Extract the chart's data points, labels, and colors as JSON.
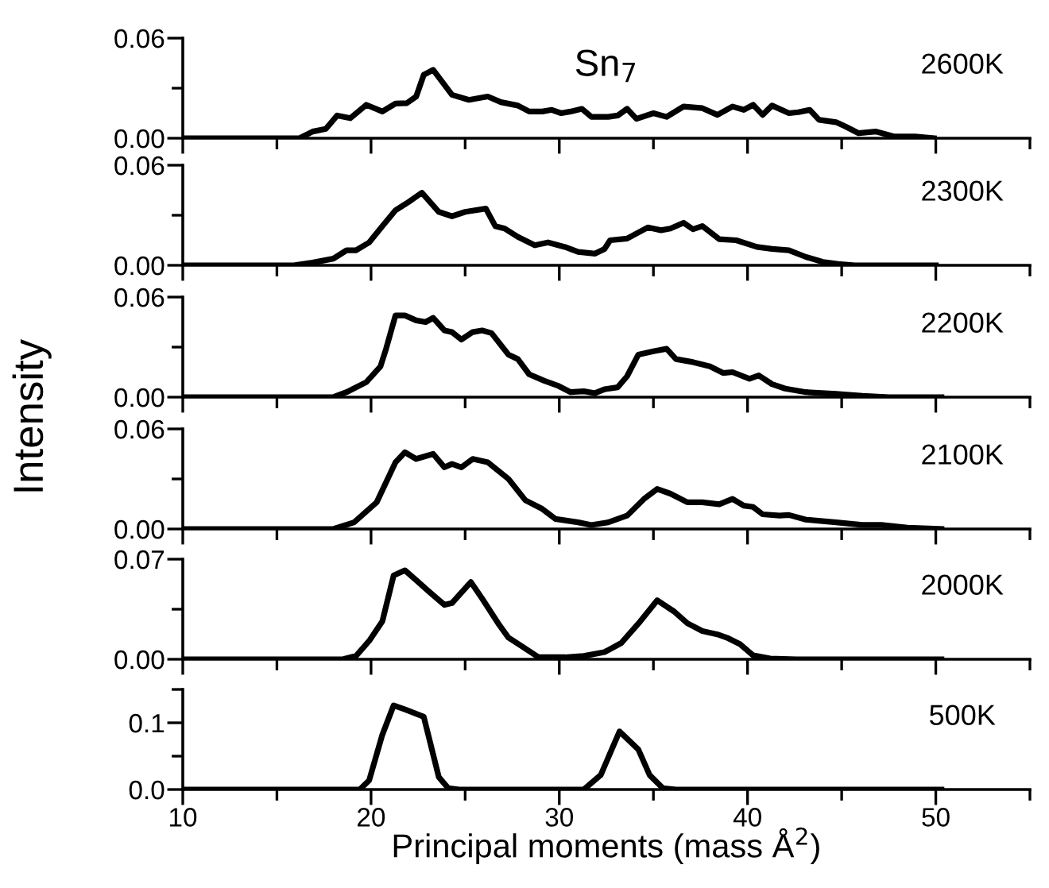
{
  "chart_data": [
    {
      "type": "line",
      "title": "Sn$_{7}$",
      "annotations": [
        "2600K"
      ],
      "color": "#000000",
      "xlim": [
        10,
        55
      ],
      "xticks": [
        10,
        {
          "value": 15,
          "label": null
        },
        20,
        {
          "value": 25,
          "label": null
        },
        30,
        {
          "value": 35,
          "label": null
        },
        40,
        {
          "value": 45,
          "label": null
        },
        50,
        {
          "value": 55,
          "label": null
        }
      ],
      "ylim": [
        0,
        0.06
      ],
      "yticks": [
        {
          "value": 0,
          "label": "0.00"
        },
        {
          "value": 0.03,
          "label": null
        },
        {
          "value": 0.06,
          "label": "0.06"
        }
      ],
      "tick_labels": "y",
      "x": [
        10,
        16.2,
        16.9,
        17.6,
        18.2,
        18.9,
        19.75,
        20.6,
        21.3,
        21.9,
        22.4,
        22.8,
        23.3,
        24.3,
        25.2,
        26.2,
        26.9,
        27.8,
        28.4,
        29.1,
        29.6,
        30.1,
        30.6,
        31.2,
        31.7,
        32.6,
        33.1,
        33.6,
        34.1,
        35.0,
        35.7,
        36.6,
        37.6,
        38.4,
        39.2,
        39.8,
        40.3,
        40.8,
        41.3,
        42.2,
        42.7,
        43.3,
        43.8,
        44.7,
        45.2,
        45.9,
        46.8,
        47.8,
        48.9,
        49.9
      ],
      "values": [
        0,
        0,
        0.004,
        0.0056,
        0.0136,
        0.012,
        0.02,
        0.016,
        0.0208,
        0.021,
        0.025,
        0.038,
        0.041,
        0.026,
        0.023,
        0.025,
        0.0216,
        0.0196,
        0.016,
        0.016,
        0.017,
        0.015,
        0.016,
        0.0176,
        0.0128,
        0.0128,
        0.0136,
        0.0176,
        0.0116,
        0.015,
        0.0128,
        0.019,
        0.018,
        0.014,
        0.019,
        0.017,
        0.02,
        0.014,
        0.0196,
        0.015,
        0.0156,
        0.017,
        0.011,
        0.0096,
        0.007,
        0.003,
        0.004,
        0.001,
        0.001,
        0
      ]
    },
    {
      "type": "line",
      "annotations": [
        "2300K"
      ],
      "color": "#000000",
      "xlim": [
        10,
        55
      ],
      "xticks": [
        10,
        {
          "value": 15,
          "label": null
        },
        20,
        {
          "value": 25,
          "label": null
        },
        30,
        {
          "value": 35,
          "label": null
        },
        40,
        {
          "value": 45,
          "label": null
        },
        50,
        {
          "value": 55,
          "label": null
        }
      ],
      "ylim": [
        0,
        0.06
      ],
      "yticks": [
        {
          "value": 0,
          "label": "0.00"
        },
        {
          "value": 0.03,
          "label": null
        },
        {
          "value": 0.06,
          "label": "0.06"
        }
      ],
      "tick_labels": "y",
      "x": [
        10,
        14.5,
        15.9,
        16.9,
        18.0,
        18.7,
        19.2,
        19.9,
        20.6,
        21.3,
        22.0,
        22.7,
        23.6,
        24.3,
        25.0,
        26.1,
        26.6,
        27.1,
        27.8,
        28.7,
        29.4,
        30.3,
        31.0,
        31.9,
        32.4,
        32.7,
        33.6,
        34.7,
        35.4,
        35.9,
        36.6,
        37.1,
        37.6,
        38.5,
        39.4,
        40.5,
        41.3,
        42.2,
        43.1,
        44.0,
        44.8,
        45.7,
        50
      ],
      "values": [
        0,
        0,
        0,
        0.0016,
        0.004,
        0.009,
        0.009,
        0.0137,
        0.0235,
        0.033,
        0.038,
        0.0435,
        0.032,
        0.0294,
        0.032,
        0.034,
        0.0235,
        0.022,
        0.017,
        0.012,
        0.0137,
        0.011,
        0.008,
        0.007,
        0.0098,
        0.015,
        0.016,
        0.0227,
        0.021,
        0.022,
        0.0255,
        0.0216,
        0.0235,
        0.0157,
        0.015,
        0.011,
        0.0098,
        0.009,
        0.005,
        0.002,
        0.0008,
        0,
        0
      ]
    },
    {
      "type": "line",
      "ylabel": "Intensity",
      "annotations": [
        "2200K"
      ],
      "color": "#000000",
      "xlim": [
        10,
        55
      ],
      "xticks": [
        10,
        {
          "value": 15,
          "label": null
        },
        20,
        {
          "value": 25,
          "label": null
        },
        30,
        {
          "value": 35,
          "label": null
        },
        40,
        {
          "value": 45,
          "label": null
        },
        50,
        {
          "value": 55,
          "label": null
        }
      ],
      "ylim": [
        0,
        0.06
      ],
      "yticks": [
        {
          "value": 0,
          "label": "0.00"
        },
        {
          "value": 0.03,
          "label": null
        },
        {
          "value": 0.06,
          "label": "0.06"
        }
      ],
      "tick_labels": "y",
      "x": [
        10,
        18.0,
        18.7,
        19.75,
        20.5,
        20.8,
        21.3,
        21.8,
        22.4,
        22.9,
        23.3,
        23.9,
        24.3,
        24.8,
        25.4,
        25.9,
        26.4,
        27.3,
        27.8,
        28.4,
        29.2,
        29.9,
        30.6,
        31.3,
        31.9,
        32.4,
        33.1,
        33.6,
        34.2,
        35.0,
        35.7,
        36.2,
        37.1,
        38.0,
        38.7,
        39.2,
        40.1,
        40.6,
        41.3,
        42.0,
        43.1,
        44.7,
        46.1,
        47.5,
        50.3
      ],
      "values": [
        0,
        0,
        0.003,
        0.009,
        0.0184,
        0.029,
        0.049,
        0.049,
        0.046,
        0.045,
        0.0475,
        0.04,
        0.039,
        0.0345,
        0.039,
        0.04,
        0.0384,
        0.0255,
        0.0228,
        0.0137,
        0.0098,
        0.007,
        0.003,
        0.0035,
        0.0024,
        0.0047,
        0.0059,
        0.0125,
        0.0255,
        0.0275,
        0.029,
        0.0228,
        0.021,
        0.0184,
        0.0145,
        0.015,
        0.011,
        0.013,
        0.0078,
        0.0051,
        0.003,
        0.002,
        0.0008,
        0,
        0
      ]
    },
    {
      "type": "line",
      "annotations": [
        "2100K"
      ],
      "color": "#000000",
      "xlim": [
        10,
        55
      ],
      "xticks": [
        10,
        {
          "value": 15,
          "label": null
        },
        20,
        {
          "value": 25,
          "label": null
        },
        30,
        {
          "value": 35,
          "label": null
        },
        40,
        {
          "value": 45,
          "label": null
        },
        50,
        {
          "value": 55,
          "label": null
        }
      ],
      "ylim": [
        0,
        0.06
      ],
      "yticks": [
        {
          "value": 0,
          "label": "0.00"
        },
        {
          "value": 0.03,
          "label": null
        },
        {
          "value": 0.06,
          "label": "0.06"
        }
      ],
      "tick_labels": "y",
      "x": [
        10,
        18.0,
        19.1,
        20.3,
        21.3,
        21.8,
        22.4,
        23.3,
        23.9,
        24.3,
        24.8,
        25.4,
        26.2,
        27.3,
        28.2,
        29.1,
        29.8,
        31.0,
        31.7,
        32.6,
        33.6,
        34.5,
        35.2,
        35.9,
        36.8,
        37.6,
        38.5,
        39.2,
        39.8,
        40.3,
        40.8,
        41.7,
        42.2,
        43.1,
        44.7,
        46.1,
        47.1,
        48.5,
        50.3
      ],
      "values": [
        0,
        0,
        0.004,
        0.016,
        0.04,
        0.046,
        0.042,
        0.045,
        0.037,
        0.039,
        0.037,
        0.042,
        0.04,
        0.03,
        0.0172,
        0.012,
        0.006,
        0.004,
        0.0024,
        0.004,
        0.008,
        0.018,
        0.024,
        0.0212,
        0.016,
        0.016,
        0.0148,
        0.018,
        0.014,
        0.0132,
        0.0088,
        0.008,
        0.0084,
        0.0056,
        0.004,
        0.0024,
        0.0024,
        0.0008,
        0
      ]
    },
    {
      "type": "line",
      "annotations": [
        "2000K"
      ],
      "color": "#000000",
      "xlim": [
        10,
        55
      ],
      "xticks": [
        10,
        {
          "value": 15,
          "label": null
        },
        20,
        {
          "value": 25,
          "label": null
        },
        30,
        {
          "value": 35,
          "label": null
        },
        40,
        {
          "value": 45,
          "label": null
        },
        50,
        {
          "value": 55,
          "label": null
        }
      ],
      "ylim": [
        0,
        0.07
      ],
      "yticks": [
        {
          "value": 0,
          "label": "0.00"
        },
        {
          "value": 0.035,
          "label": null
        },
        {
          "value": 0.07,
          "label": "0.07"
        }
      ],
      "tick_labels": "y",
      "x": [
        10,
        18.5,
        19.2,
        19.9,
        20.6,
        21.2,
        21.8,
        22.4,
        23.1,
        23.9,
        24.3,
        25.3,
        25.9,
        26.8,
        27.3,
        28.0,
        28.9,
        30.3,
        31.3,
        32.4,
        33.3,
        34.3,
        35.2,
        36.1,
        36.8,
        37.6,
        38.4,
        38.9,
        39.6,
        40.3,
        41.2,
        42.6,
        50.3
      ],
      "values": [
        0,
        0,
        0.0023,
        0.0128,
        0.0265,
        0.0586,
        0.0622,
        0.0553,
        0.0471,
        0.038,
        0.0393,
        0.054,
        0.0425,
        0.0242,
        0.0151,
        0.0092,
        0.0014,
        0.0014,
        0.0023,
        0.005,
        0.0114,
        0.0265,
        0.0412,
        0.0334,
        0.0252,
        0.0197,
        0.0174,
        0.0151,
        0.0105,
        0.0027,
        0.0005,
        0,
        0
      ]
    },
    {
      "type": "line",
      "xlabel": "Principal moments (mass Å$^{2}$)",
      "annotations": [
        "500K"
      ],
      "color": "#000000",
      "xlim": [
        10,
        55
      ],
      "xticks": [
        10,
        {
          "value": 15,
          "label": null
        },
        20,
        {
          "value": 25,
          "label": null
        },
        30,
        {
          "value": 35,
          "label": null
        },
        40,
        {
          "value": 45,
          "label": null
        },
        50,
        {
          "value": 55,
          "label": null
        }
      ],
      "ylim": [
        0,
        0.15
      ],
      "yticks": [
        {
          "value": 0,
          "label": "0.0"
        },
        {
          "value": 0.05,
          "label": null
        },
        {
          "value": 0.1,
          "label": "0.1"
        },
        {
          "value": 0.15,
          "label": null
        }
      ],
      "x": [
        10,
        19.4,
        19.9,
        20.6,
        21.2,
        21.8,
        22.8,
        23.6,
        24.1,
        24.7,
        31.3,
        32.2,
        33.2,
        34.2,
        34.8,
        35.5,
        36.2,
        50.3
      ],
      "values": [
        0,
        0,
        0.0137,
        0.082,
        0.126,
        0.12,
        0.109,
        0.0186,
        0.002,
        0,
        0,
        0.0216,
        0.087,
        0.06,
        0.0216,
        0.002,
        0,
        0
      ]
    }
  ]
}
